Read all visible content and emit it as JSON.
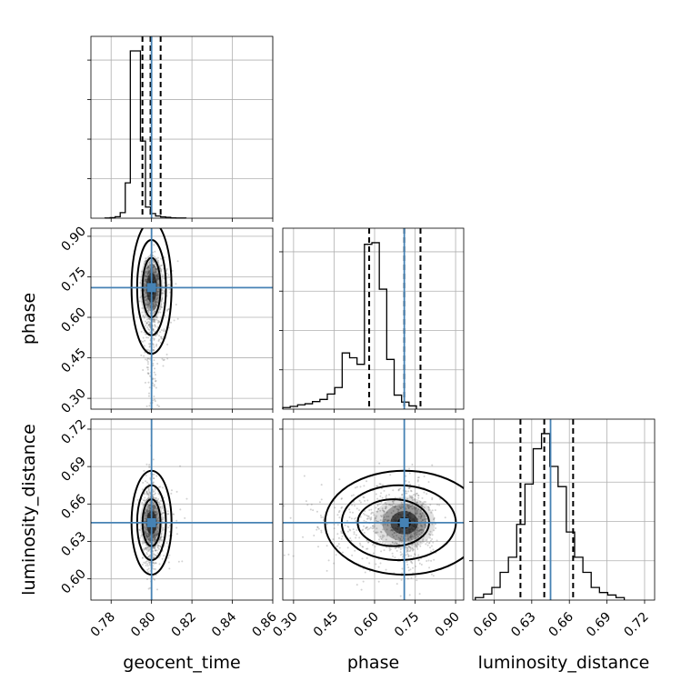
{
  "chart_data": {
    "type": "corner",
    "parameters": [
      {
        "key": "geocent_time",
        "label": "geocent_time",
        "range": [
          0.77,
          0.86
        ],
        "ticks": [
          "0.78",
          "0.80",
          "0.82",
          "0.84",
          "0.86"
        ],
        "tick_values": [
          0.78,
          0.8,
          0.82,
          0.84,
          0.86
        ],
        "truth": 0.8,
        "quantiles": [
          0.7955,
          0.7995,
          0.8045
        ]
      },
      {
        "key": "phase",
        "label": "phase",
        "range": [
          0.26,
          0.93
        ],
        "ticks": [
          "0.30",
          "0.45",
          "0.60",
          "0.75",
          "0.90"
        ],
        "tick_values": [
          0.3,
          0.45,
          0.6,
          0.75,
          0.9
        ],
        "truth": 0.71,
        "quantiles": [
          0.58,
          0.71,
          0.77
        ]
      },
      {
        "key": "luminosity_distance",
        "label": "luminosity_distance",
        "range": [
          0.583,
          0.728
        ],
        "ticks": [
          "0.60",
          "0.63",
          "0.66",
          "0.69",
          "0.72"
        ],
        "tick_values": [
          0.6,
          0.63,
          0.66,
          0.69,
          0.72
        ],
        "truth": 0.645,
        "quantiles": [
          0.621,
          0.64,
          0.663
        ]
      }
    ],
    "histograms": {
      "geocent_time": {
        "bin_edges_start": 0.777,
        "bin_width": 0.0025,
        "counts": [
          1,
          3,
          8,
          30,
          190,
          900,
          900,
          415,
          60,
          25,
          12,
          7,
          5,
          2,
          1,
          1
        ]
      },
      "phase": {
        "bin_edges_start": 0.26,
        "bin_width": 0.0275,
        "counts": [
          3,
          5,
          8,
          10,
          14,
          18,
          28,
          40,
          104,
          95,
          83,
          305,
          308,
          222,
          92,
          26,
          13,
          6
        ]
      },
      "luminosity_distance": {
        "bin_edges_start": 0.585,
        "bin_width": 0.0066,
        "counts": [
          5,
          12,
          25,
          55,
          85,
          150,
          230,
          300,
          330,
          265,
          225,
          135,
          85,
          55,
          25,
          15,
          10,
          5
        ]
      }
    },
    "grid": true,
    "truth_color": "#4682b4"
  }
}
